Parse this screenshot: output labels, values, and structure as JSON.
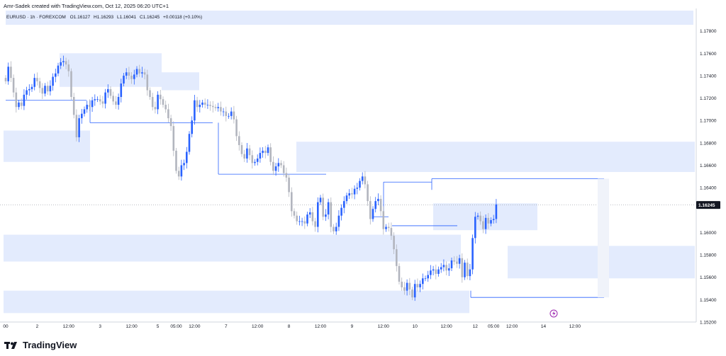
{
  "credit_line": "Amr-Sadek created with TradingView.com, Oct 12, 2025 06:20 UTC+1",
  "brand": "TradingView",
  "colors": {
    "up": "#2962ff",
    "down": "#b2b5be",
    "zone": "#e3ebfd",
    "line": "#2962ff",
    "price_label_bg": "#131722"
  },
  "chart_data": {
    "type": "candlestick",
    "symbol_line": "EURUSD · 1h · FOREXCOM",
    "ohlc": {
      "o": "O1.16127",
      "h": "H1.16293",
      "l": "L1.16041",
      "c": "C1.16245",
      "chg": "+0.00118 (+0.10%)"
    },
    "last_price": "1.16245",
    "ylim": [
      1.152,
      1.18
    ],
    "y_ticks": [
      {
        "v": 1.178,
        "label": "1.17800"
      },
      {
        "v": 1.176,
        "label": "1.17600"
      },
      {
        "v": 1.174,
        "label": "1.17400"
      },
      {
        "v": 1.172,
        "label": "1.17200"
      },
      {
        "v": 1.17,
        "label": "1.17000"
      },
      {
        "v": 1.168,
        "label": "1.16800"
      },
      {
        "v": 1.166,
        "label": "1.16600"
      },
      {
        "v": 1.164,
        "label": "1.16400"
      },
      {
        "v": 1.16,
        "label": "1.16000"
      },
      {
        "v": 1.158,
        "label": "1.15800"
      },
      {
        "v": 1.156,
        "label": "1.15600"
      },
      {
        "v": 1.154,
        "label": "1.15400"
      },
      {
        "v": 1.152,
        "label": "1.15200"
      }
    ],
    "x_ticks": [
      {
        "i": 0,
        "label": "00"
      },
      {
        "i": 12,
        "label": "2"
      },
      {
        "i": 24,
        "label": "12:00"
      },
      {
        "i": 36,
        "label": "3"
      },
      {
        "i": 48,
        "label": "12:00"
      },
      {
        "i": 58,
        "label": "5"
      },
      {
        "i": 65,
        "label": "05:00"
      },
      {
        "i": 72,
        "label": "12:00"
      },
      {
        "i": 84,
        "label": "7"
      },
      {
        "i": 96,
        "label": "12:00"
      },
      {
        "i": 108,
        "label": "8"
      },
      {
        "i": 120,
        "label": "12:00"
      },
      {
        "i": 132,
        "label": "9"
      },
      {
        "i": 144,
        "label": "12:00"
      },
      {
        "i": 156,
        "label": "10"
      },
      {
        "i": 168,
        "label": "12:00"
      },
      {
        "i": 179,
        "label": "12"
      },
      {
        "i": 186,
        "label": "05:00"
      },
      {
        "i": 193,
        "label": "12:00"
      },
      {
        "i": 205,
        "label": "14"
      },
      {
        "i": 217,
        "label": "12:00"
      }
    ],
    "closes": [
      1.1735,
      1.1748,
      1.1738,
      1.1725,
      1.1712,
      1.1716,
      1.1713,
      1.1723,
      1.1727,
      1.1728,
      1.173,
      1.1738,
      1.1735,
      1.1729,
      1.1724,
      1.1731,
      1.1726,
      1.1731,
      1.1739,
      1.1742,
      1.1749,
      1.1752,
      1.1753,
      1.175,
      1.1744,
      1.1721,
      1.1705,
      1.1685,
      1.1702,
      1.1706,
      1.171,
      1.1714,
      1.1712,
      1.1718,
      1.1719,
      1.1719,
      1.1717,
      1.1715,
      1.1725,
      1.1728,
      1.1722,
      1.1717,
      1.1714,
      1.1721,
      1.1733,
      1.174,
      1.1743,
      1.174,
      1.1737,
      1.1741,
      1.1746,
      1.1742,
      1.1743,
      1.1741,
      1.1727,
      1.1721,
      1.1712,
      1.171,
      1.1723,
      1.1719,
      1.1714,
      1.171,
      1.1702,
      1.1695,
      1.1673,
      1.1655,
      1.165,
      1.166,
      1.1662,
      1.1672,
      1.1688,
      1.17,
      1.1718,
      1.1712,
      1.1714,
      1.1716,
      1.1714,
      1.1714,
      1.1713,
      1.1712,
      1.1711,
      1.1712,
      1.1708,
      1.1708,
      1.1704,
      1.1704,
      1.1708,
      1.1701,
      1.1686,
      1.1678,
      1.167,
      1.1666,
      1.1675,
      1.1669,
      1.1662,
      1.1663,
      1.1666,
      1.1671,
      1.1673,
      1.1671,
      1.1676,
      1.1663,
      1.1655,
      1.1659,
      1.1662,
      1.166,
      1.1653,
      1.1649,
      1.1636,
      1.1619,
      1.1615,
      1.161,
      1.161,
      1.161,
      1.1608,
      1.1616,
      1.1618,
      1.161,
      1.1605,
      1.1627,
      1.1631,
      1.1614,
      1.1616,
      1.1627,
      1.1605,
      1.1601,
      1.1605,
      1.1615,
      1.1622,
      1.1628,
      1.1633,
      1.1635,
      1.1634,
      1.1639,
      1.164,
      1.1646,
      1.165,
      1.1643,
      1.1628,
      1.1612,
      1.1621,
      1.1628,
      1.163,
      1.1619,
      1.1603,
      1.1605,
      1.1604,
      1.1597,
      1.1585,
      1.157,
      1.1556,
      1.1551,
      1.1548,
      1.1555,
      1.1549,
      1.1542,
      1.1554,
      1.1551,
      1.1554,
      1.1559,
      1.1559,
      1.1562,
      1.1566,
      1.1567,
      1.1563,
      1.1567,
      1.1569,
      1.1571,
      1.1566,
      1.1568,
      1.1575,
      1.1574,
      1.1572,
      1.1577,
      1.156,
      1.1573,
      1.1561,
      1.1567,
      1.1595,
      1.1614,
      1.1615,
      1.161,
      1.1603,
      1.1613,
      1.1608,
      1.1611,
      1.1612,
      1.1625
    ]
  }
}
